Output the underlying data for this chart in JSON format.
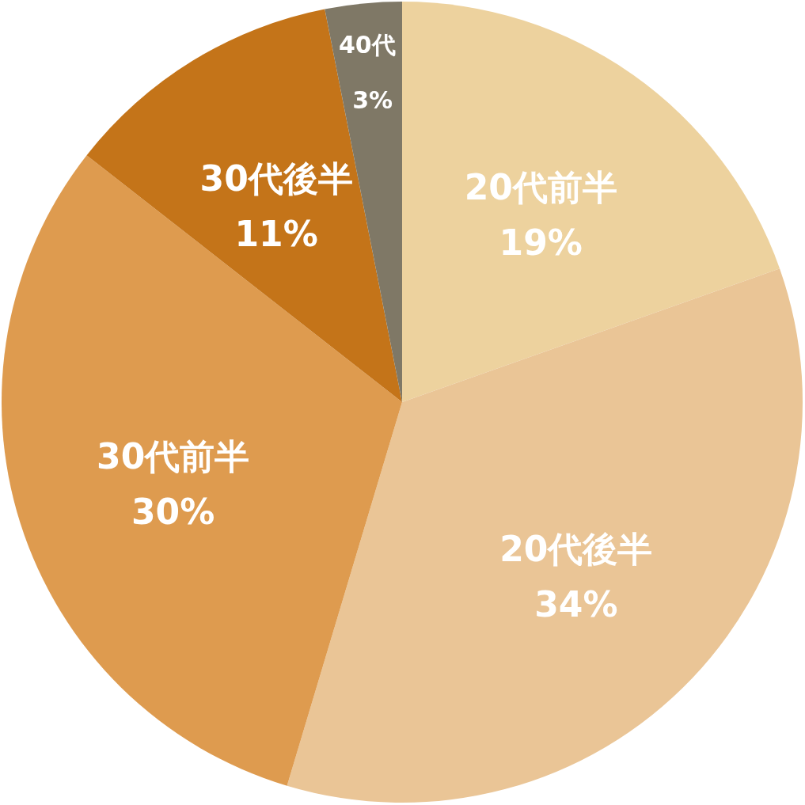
{
  "chart_data": {
    "type": "pie",
    "categories": [
      "20代前半",
      "20代後半",
      "30代前半",
      "30代後半",
      "40代"
    ],
    "values": [
      19,
      34,
      30,
      11,
      3
    ],
    "value_labels": [
      "19%",
      "34%",
      "30%",
      "11%",
      "3%"
    ],
    "colors": [
      "#edd29e",
      "#eac596",
      "#de9b4f",
      "#c47419",
      "#7f7866"
    ]
  }
}
